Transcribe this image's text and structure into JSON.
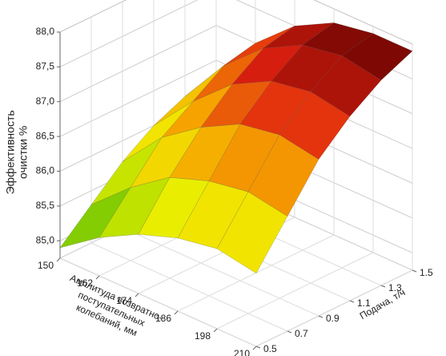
{
  "chart_data": {
    "type": "surface",
    "z_label_lines": [
      "Эффективность",
      "очистки %"
    ],
    "x_label_lines": [
      "Амплитуда возвратно-",
      "поступательных",
      "колебаний, мм"
    ],
    "y_label": "Подача, т/ч",
    "x": [
      150,
      162,
      174,
      186,
      198,
      210
    ],
    "y": [
      0.5,
      0.7,
      0.9,
      1.1,
      1.3,
      1.5
    ],
    "z": [
      [
        84.9,
        85.3,
        85.6,
        85.8,
        85.9,
        85.8
      ],
      [
        85.3,
        85.8,
        86.2,
        86.4,
        86.5,
        86.4
      ],
      [
        85.7,
        86.3,
        86.7,
        87.0,
        87.1,
        87.0
      ],
      [
        86.0,
        86.6,
        87.1,
        87.4,
        87.5,
        87.4
      ],
      [
        86.2,
        86.9,
        87.4,
        87.7,
        87.8,
        87.7
      ],
      [
        86.3,
        87.0,
        87.5,
        87.8,
        87.9,
        87.9
      ]
    ],
    "xlim": [
      150,
      210
    ],
    "xticks": [
      150,
      162,
      174,
      186,
      198,
      210
    ],
    "ylim": [
      0.5,
      1.5
    ],
    "yticks": [
      0.5,
      0.7,
      0.9,
      1.1,
      1.3,
      1.5
    ],
    "zlim": [
      84.75,
      88
    ],
    "zticks": [
      {
        "value": 85,
        "label": "85,0"
      },
      {
        "value": 85.5,
        "label": "85,5"
      },
      {
        "value": 86,
        "label": "86,0"
      },
      {
        "value": 86.5,
        "label": "86,5"
      },
      {
        "value": 87,
        "label": "87,0"
      },
      {
        "value": 87.5,
        "label": "87,5"
      },
      {
        "value": 88,
        "label": "88,0"
      }
    ],
    "colorscale": [
      "#2f9a1c",
      "#8fd400",
      "#f0f000",
      "#f6a000",
      "#e02010",
      "#5a0000"
    ],
    "grid": true
  }
}
